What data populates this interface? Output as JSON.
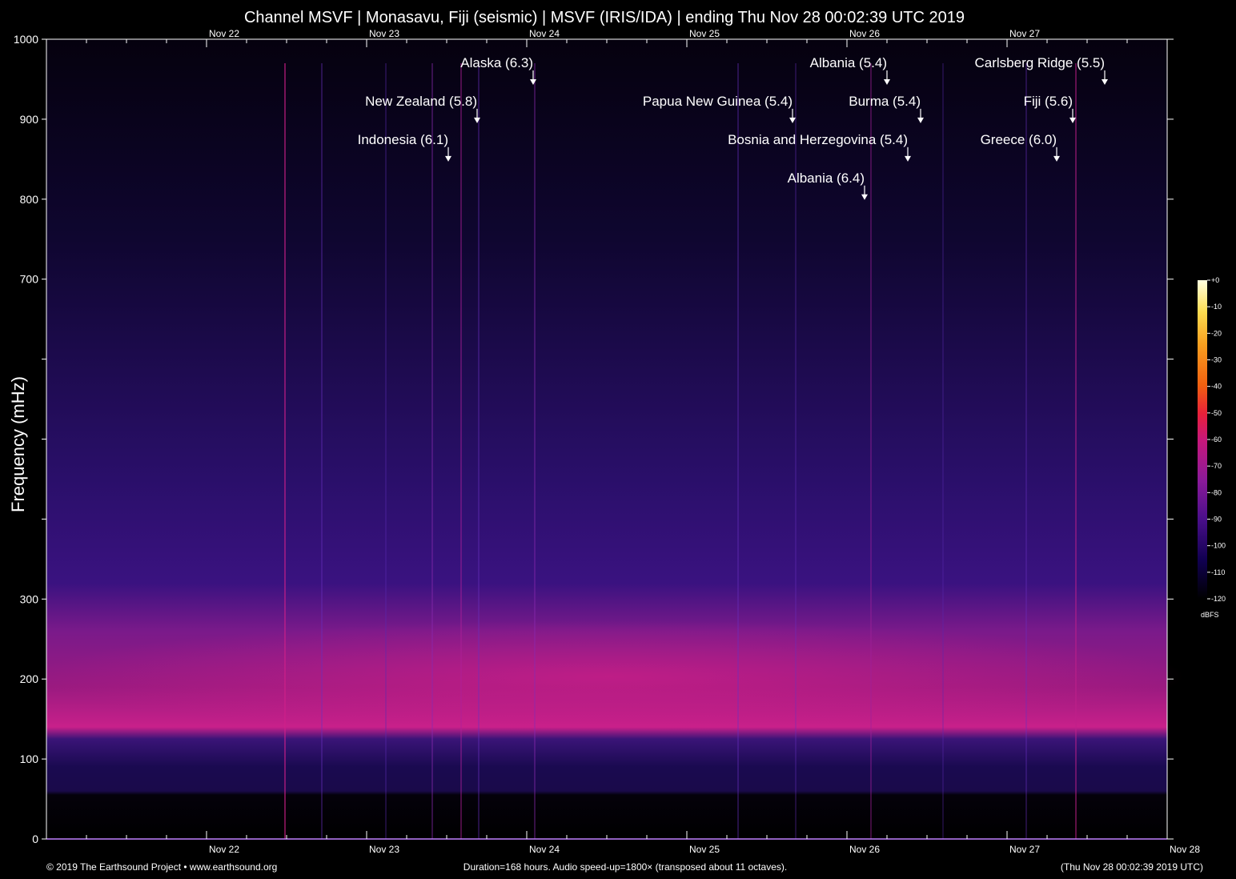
{
  "chart_data": {
    "type": "heatmap",
    "title": "Channel MSVF | Monasavu, Fiji (seismic) | MSVF (IRIS/IDA) | ending Thu Nov 28 00:02:39 UTC 2019",
    "ylabel": "Frequency (mHz)",
    "ylim": [
      0,
      1000
    ],
    "y_ticks": [
      0,
      100,
      200,
      300,
      400,
      500,
      600,
      700,
      800,
      900,
      1000
    ],
    "y_tick_labels": [
      "0",
      "100",
      "200",
      "300",
      "",
      "",
      "",
      "700",
      "800",
      "900",
      "1000"
    ],
    "x_range_days": [
      21,
      28
    ],
    "x_tick_labels": [
      {
        "day": 22,
        "label": "Nov 22"
      },
      {
        "day": 23,
        "label": "Nov 23"
      },
      {
        "day": 24,
        "label": "Nov 24"
      },
      {
        "day": 25,
        "label": "Nov 25"
      },
      {
        "day": 26,
        "label": "Nov 26"
      },
      {
        "day": 27,
        "label": "Nov 27"
      },
      {
        "day": 28,
        "label": "Nov 28"
      }
    ],
    "events": [
      {
        "label": "Alaska (6.3)",
        "day": 24.04,
        "freq": 943
      },
      {
        "label": "New Zealand (5.8)",
        "day": 23.69,
        "freq": 895
      },
      {
        "label": "Indonesia (6.1)",
        "day": 23.51,
        "freq": 847
      },
      {
        "label": "Albania (5.4)",
        "day": 26.25,
        "freq": 943
      },
      {
        "label": "Papua New Guinea (5.4)",
        "day": 25.66,
        "freq": 895
      },
      {
        "label": "Burma (5.4)",
        "day": 26.46,
        "freq": 895
      },
      {
        "label": "Bosnia and Herzegovina (5.4)",
        "day": 26.38,
        "freq": 847
      },
      {
        "label": "Albania (6.4)",
        "day": 26.11,
        "freq": 799
      },
      {
        "label": "Carlsberg Ridge (5.5)",
        "day": 27.61,
        "freq": 943
      },
      {
        "label": "Fiji (5.6)",
        "day": 27.41,
        "freq": 895
      },
      {
        "label": "Greece (6.0)",
        "day": 27.31,
        "freq": 847
      }
    ],
    "colorbar": {
      "unit": "dBFS",
      "range": [
        -120,
        0
      ],
      "ticks": [
        "+0",
        "-10",
        "-20",
        "-30",
        "-40",
        "-50",
        "-60",
        "-70",
        "-80",
        "-90",
        "-100",
        "-110",
        "-120"
      ],
      "colors": [
        "#000000",
        "#100050",
        "#4a0f8a",
        "#8a1a9a",
        "#c8187a",
        "#e8203a",
        "#f06010",
        "#f8a020",
        "#fcdc50",
        "#ffffe0"
      ]
    },
    "grid": false,
    "legend": "colorbar right"
  },
  "footer": {
    "left": "© 2019 The Earthsound Project • www.earthsound.org",
    "center": "Duration=168 hours. Audio speed-up=1800× (transposed about 11 octaves).",
    "right": "(Thu Nov 28 00:02:39 2019 UTC)"
  }
}
